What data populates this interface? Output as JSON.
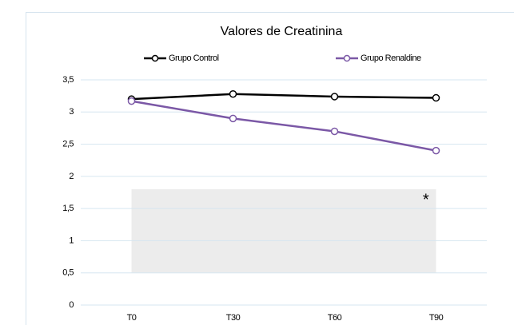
{
  "chart_data": {
    "type": "line",
    "title": "Valores de Creatinina",
    "categories": [
      "T0",
      "T30",
      "T60",
      "T90"
    ],
    "series": [
      {
        "name": "Grupo Control",
        "color": "#000000",
        "values": [
          3.2,
          3.28,
          3.24,
          3.22
        ]
      },
      {
        "name": "Grupo Renaldine",
        "color": "#7b58a6",
        "values": [
          3.17,
          2.9,
          2.7,
          2.4
        ]
      }
    ],
    "ylim": [
      0,
      3.5
    ],
    "yticks": [
      0,
      {
        "value": 0.5,
        "label": "0,5"
      },
      1,
      {
        "value": 1.5,
        "label": "1,5"
      },
      2,
      {
        "value": 2.5,
        "label": "2,5"
      },
      3,
      {
        "value": 3.5,
        "label": "3,5"
      }
    ],
    "grid": true,
    "legend": "top",
    "highlight": {
      "y": [
        0.5,
        1.8
      ],
      "color": "#ececec",
      "annotation": "*"
    }
  }
}
